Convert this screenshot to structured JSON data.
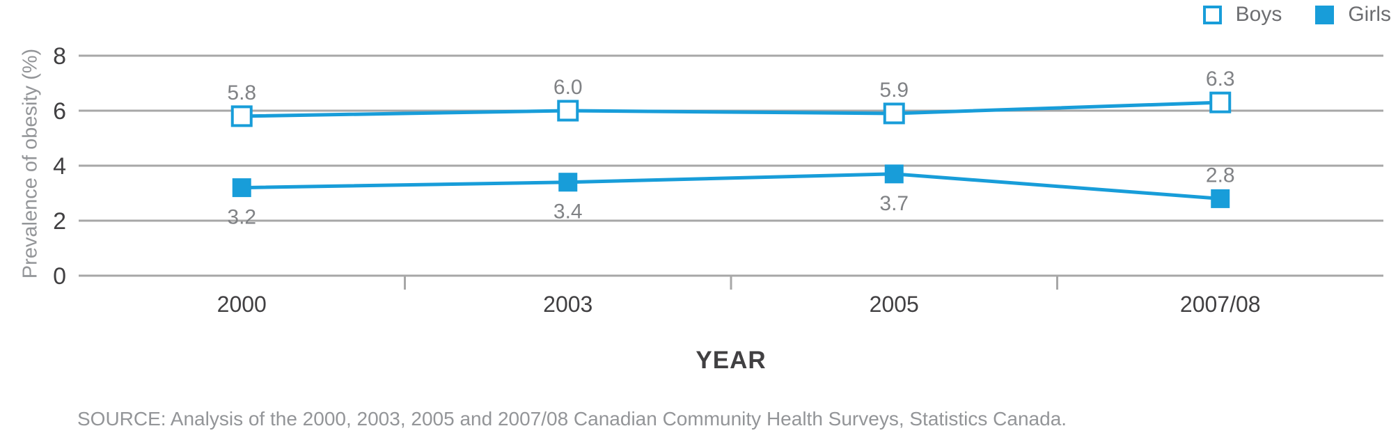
{
  "chart_data": {
    "type": "line",
    "title": "",
    "xlabel": "YEAR",
    "ylabel": "Prevalence of obesity (%)",
    "categories": [
      "2000",
      "2003",
      "2005",
      "2007/08"
    ],
    "series": [
      {
        "name": "Boys",
        "values": [
          5.8,
          6.0,
          5.9,
          6.3
        ],
        "color": "#189dd9",
        "marker": "open-square",
        "label_positions": [
          "above",
          "above",
          "above",
          "above"
        ]
      },
      {
        "name": "Girls",
        "values": [
          3.2,
          3.4,
          3.7,
          2.8
        ],
        "color": "#189dd9",
        "marker": "filled-square",
        "label_positions": [
          "below",
          "below",
          "below",
          "above"
        ]
      }
    ],
    "ylim": [
      0,
      8
    ],
    "yticks": [
      0,
      2,
      4,
      6,
      8
    ],
    "grid": true,
    "legend_position": "top-right",
    "source": "SOURCE: Analysis of the 2000, 2003, 2005 and 2007/08 Canadian Community Health Surveys, Statistics Canada."
  },
  "colors": {
    "line": "#189dd9",
    "grid": "#a7a7a7",
    "tick_label": "#414042",
    "data_label": "#808285",
    "muted_text": "#939598",
    "legend_text": "#6d6e71"
  }
}
